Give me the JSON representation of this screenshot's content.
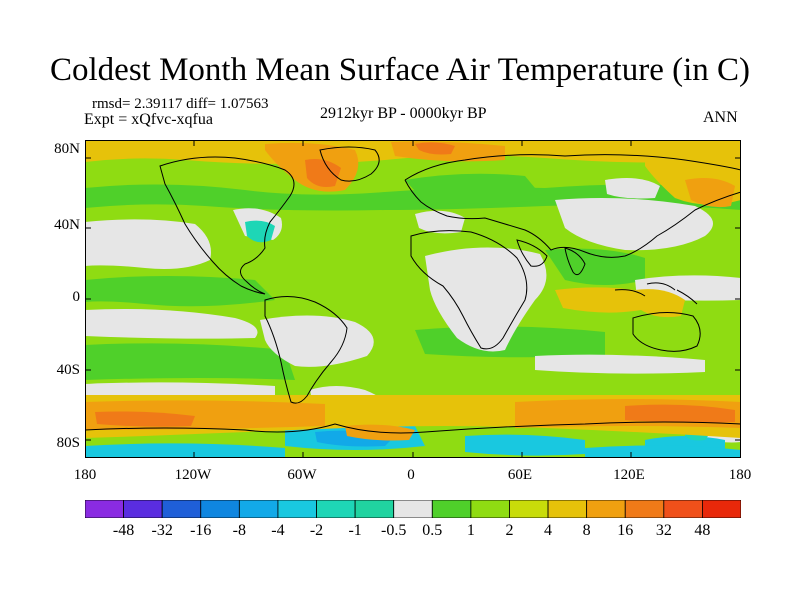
{
  "title": "Coldest Month Mean Surface Air Temperature (in C)",
  "stats": "rmsd= 2.39117 diff= 1.07563",
  "experiment": "Expt = xQfvc-xqfua",
  "period": "2912kyr BP - 0000kyr BP",
  "season": "ANN",
  "lat_labels": [
    "80N",
    "40N",
    "0",
    "40S",
    "80S"
  ],
  "lon_labels": [
    "180",
    "120W",
    "60W",
    "0",
    "60E",
    "120E",
    "180"
  ],
  "legend": {
    "labels": [
      "-48",
      "-32",
      "-16",
      "-8",
      "-4",
      "-2",
      "-1",
      "-0.5",
      "0.5",
      "1",
      "2",
      "4",
      "8",
      "16",
      "32",
      "48"
    ],
    "colors": [
      "#8a2be2",
      "#5a2de0",
      "#1f5fd8",
      "#0f86e0",
      "#12a9e8",
      "#19c8e0",
      "#1ed6b6",
      "#20d3a0",
      "#e6e6e6",
      "#4fd02a",
      "#8fdc12",
      "#c8dc0a",
      "#e6c20a",
      "#f0a010",
      "#f07a18",
      "#f0501a",
      "#e8280a"
    ]
  }
}
